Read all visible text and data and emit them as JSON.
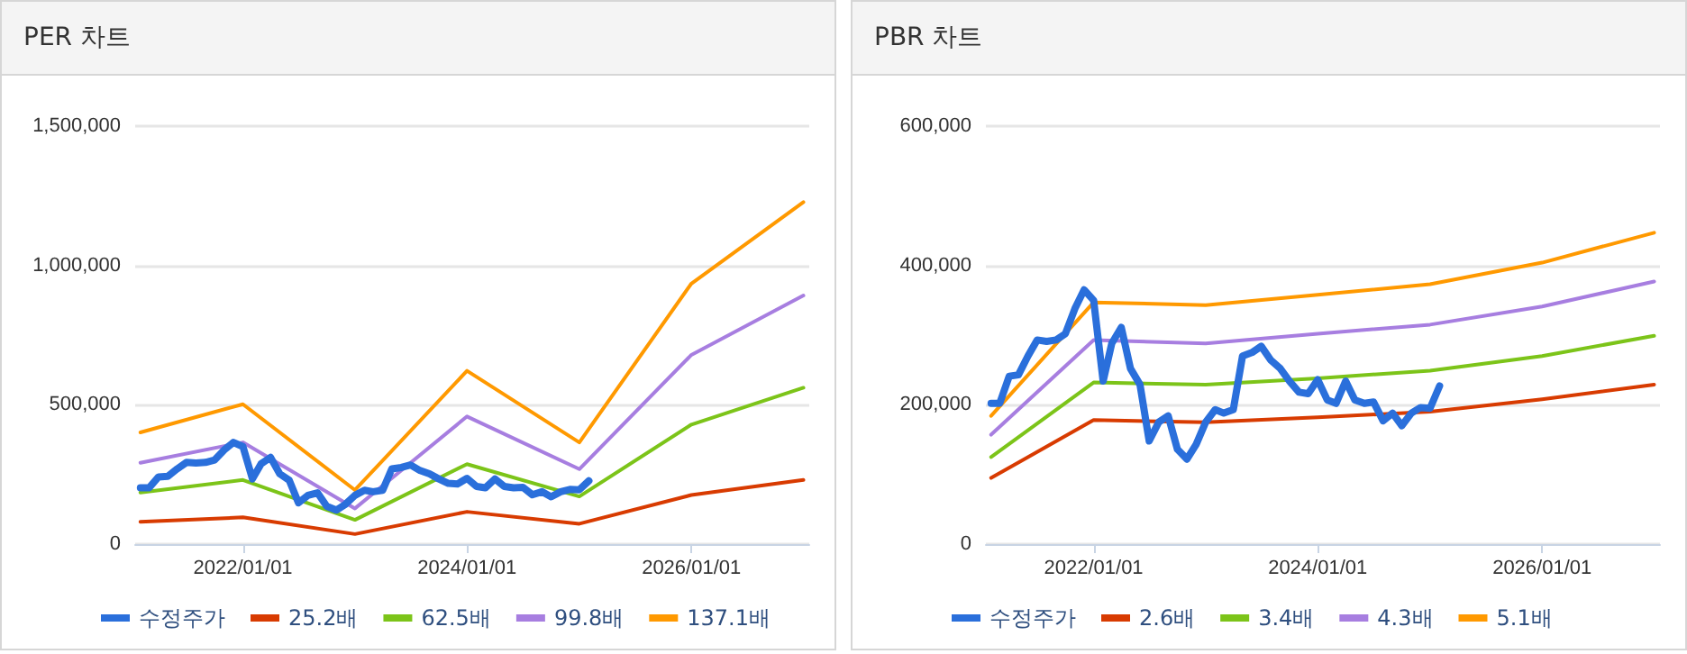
{
  "chart_data": [
    {
      "type": "line",
      "title": "PER 차트",
      "xlim": [
        "2021-01-15",
        "2027-01-20"
      ],
      "xticks": [
        {
          "value": "2022-01-01",
          "label": "2022/01/01"
        },
        {
          "value": "2024-01-01",
          "label": "2024/01/01"
        },
        {
          "value": "2026-01-01",
          "label": "2026/01/01"
        }
      ],
      "ylim": [
        0,
        1500000
      ],
      "yticks": [
        {
          "value": 0,
          "label": "0"
        },
        {
          "value": 500000,
          "label": "500,000"
        },
        {
          "value": 1000000,
          "label": "1,000,000"
        },
        {
          "value": 1500000,
          "label": "1,500,000"
        }
      ],
      "grid": "y",
      "legend": "bottom",
      "marker": "none",
      "line_style": "solid",
      "series": [
        {
          "name": "수정주가",
          "color": "#2a6fdb",
          "x": [
            "2021-02",
            "2021-03",
            "2021-04",
            "2021-05",
            "2021-06",
            "2021-07",
            "2021-08",
            "2021-09",
            "2021-10",
            "2021-11",
            "2021-12",
            "2022-01",
            "2022-02",
            "2022-03",
            "2022-04",
            "2022-05",
            "2022-06",
            "2022-07",
            "2022-08",
            "2022-09",
            "2022-10",
            "2022-11",
            "2022-12",
            "2023-01",
            "2023-02",
            "2023-03",
            "2023-04",
            "2023-05",
            "2023-06",
            "2023-07",
            "2023-08",
            "2023-09",
            "2023-10",
            "2023-11",
            "2023-12",
            "2024-01",
            "2024-02",
            "2024-03",
            "2024-04",
            "2024-05",
            "2024-06",
            "2024-07",
            "2024-08",
            "2024-09",
            "2024-10",
            "2024-11",
            "2024-12",
            "2025-01",
            "2025-02"
          ],
          "values": [
            202000,
            202000,
            241000,
            243000,
            270000,
            293000,
            291000,
            293000,
            302000,
            338000,
            365000,
            350000,
            234000,
            288000,
            311000,
            252000,
            229000,
            148000,
            175000,
            184000,
            136000,
            122000,
            143000,
            175000,
            193000,
            188000,
            193000,
            270000,
            275000,
            284000,
            264000,
            252000,
            234000,
            218000,
            216000,
            236000,
            207000,
            202000,
            234000,
            207000,
            202000,
            204000,
            177000,
            188000,
            170000,
            188000,
            196000,
            195000,
            227000
          ]
        },
        {
          "name": "25.2배",
          "color": "#d83b01",
          "x": [
            "2021-02",
            "2022-01",
            "2023-01",
            "2024-01",
            "2025-01",
            "2026-01",
            "2027-01"
          ],
          "values": [
            80000,
            96000,
            36000,
            116000,
            73000,
            176000,
            230000
          ]
        },
        {
          "name": "62.5배",
          "color": "#7cc419",
          "x": [
            "2021-02",
            "2022-01",
            "2023-01",
            "2024-01",
            "2025-01",
            "2026-01",
            "2027-01"
          ],
          "values": [
            185000,
            230000,
            87000,
            287000,
            171000,
            429000,
            561000
          ]
        },
        {
          "name": "99.8배",
          "color": "#a77ee0",
          "x": [
            "2021-02",
            "2022-01",
            "2023-01",
            "2024-01",
            "2025-01",
            "2026-01",
            "2027-01"
          ],
          "values": [
            292000,
            365000,
            128000,
            458000,
            269000,
            679000,
            892000
          ]
        },
        {
          "name": "137.1배",
          "color": "#ff9900",
          "x": [
            "2021-02",
            "2022-01",
            "2023-01",
            "2024-01",
            "2025-01",
            "2026-01",
            "2027-01"
          ],
          "values": [
            401000,
            502000,
            194000,
            622000,
            365000,
            935000,
            1227000
          ]
        }
      ]
    },
    {
      "type": "line",
      "title": "PBR 차트",
      "xlim": [
        "2021-01-15",
        "2027-01-20"
      ],
      "xticks": [
        {
          "value": "2022-01-01",
          "label": "2022/01/01"
        },
        {
          "value": "2024-01-01",
          "label": "2024/01/01"
        },
        {
          "value": "2026-01-01",
          "label": "2026/01/01"
        }
      ],
      "ylim": [
        0,
        600000
      ],
      "yticks": [
        {
          "value": 0,
          "label": "0"
        },
        {
          "value": 200000,
          "label": "200,000"
        },
        {
          "value": 400000,
          "label": "400,000"
        },
        {
          "value": 600000,
          "label": "600,000"
        }
      ],
      "grid": "y",
      "legend": "bottom",
      "marker": "none",
      "line_style": "solid",
      "series": [
        {
          "name": "수정주가",
          "color": "#2a6fdb",
          "x": [
            "2021-02",
            "2021-03",
            "2021-04",
            "2021-05",
            "2021-06",
            "2021-07",
            "2021-08",
            "2021-09",
            "2021-10",
            "2021-11",
            "2021-12",
            "2022-01",
            "2022-02",
            "2022-03",
            "2022-04",
            "2022-05",
            "2022-06",
            "2022-07",
            "2022-08",
            "2022-09",
            "2022-10",
            "2022-11",
            "2022-12",
            "2023-01",
            "2023-02",
            "2023-03",
            "2023-04",
            "2023-05",
            "2023-06",
            "2023-07",
            "2023-08",
            "2023-09",
            "2023-10",
            "2023-11",
            "2023-12",
            "2024-01",
            "2024-02",
            "2024-03",
            "2024-04",
            "2024-05",
            "2024-06",
            "2024-07",
            "2024-08",
            "2024-09",
            "2024-10",
            "2024-11",
            "2024-12",
            "2025-01",
            "2025-02"
          ],
          "values": [
            202000,
            202000,
            241000,
            243000,
            270000,
            293000,
            291000,
            293000,
            302000,
            338000,
            365000,
            350000,
            234000,
            288000,
            311000,
            252000,
            229000,
            148000,
            175000,
            184000,
            136000,
            122000,
            143000,
            175000,
            193000,
            188000,
            193000,
            270000,
            275000,
            284000,
            264000,
            252000,
            234000,
            218000,
            216000,
            236000,
            207000,
            202000,
            234000,
            207000,
            202000,
            204000,
            177000,
            188000,
            170000,
            188000,
            196000,
            195000,
            227000
          ]
        },
        {
          "name": "2.6배",
          "color": "#d83b01",
          "x": [
            "2021-02",
            "2022-01",
            "2023-01",
            "2024-01",
            "2025-01",
            "2026-01",
            "2027-01"
          ],
          "values": [
            95000,
            178000,
            175000,
            182000,
            190000,
            208000,
            229000
          ]
        },
        {
          "name": "3.4배",
          "color": "#7cc419",
          "x": [
            "2021-02",
            "2022-01",
            "2023-01",
            "2024-01",
            "2025-01",
            "2026-01",
            "2027-01"
          ],
          "values": [
            125000,
            232000,
            229000,
            238000,
            249000,
            270000,
            299000
          ]
        },
        {
          "name": "4.3배",
          "color": "#a77ee0",
          "x": [
            "2021-02",
            "2022-01",
            "2023-01",
            "2024-01",
            "2025-01",
            "2026-01",
            "2027-01"
          ],
          "values": [
            157000,
            293000,
            288000,
            302000,
            315000,
            341000,
            377000
          ]
        },
        {
          "name": "5.1배",
          "color": "#ff9900",
          "x": [
            "2021-02",
            "2022-01",
            "2023-01",
            "2024-01",
            "2025-01",
            "2026-01",
            "2027-01"
          ],
          "values": [
            184000,
            347000,
            343000,
            358000,
            373000,
            404000,
            447000
          ]
        }
      ]
    }
  ]
}
